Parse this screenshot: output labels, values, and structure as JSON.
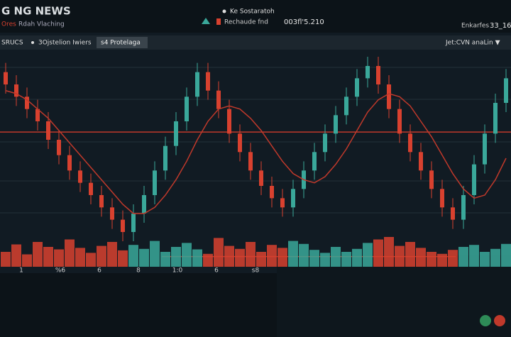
{
  "header": {
    "title": "G NG NEWS",
    "menu": [
      "Ores",
      "Rdah",
      "Vlaching"
    ],
    "status": "Ke Sostaratoh",
    "indicator": "Rechaude fnd",
    "price": "003fl'5.210",
    "right_label": "Enkarfes",
    "right_value": "33_16"
  },
  "toolbar": {
    "items": [
      "SRUCS",
      "3Ojstelion Iwiers",
      "s4 Protelaga"
    ],
    "selector": "Jet:CVN anaLin ▼"
  },
  "chart_data": {
    "type": "candlestick",
    "open": [
      82,
      78,
      74,
      70,
      66,
      60,
      55,
      50,
      46,
      42,
      38,
      34,
      30,
      36,
      42,
      50,
      58,
      66,
      74,
      82,
      76,
      70,
      62,
      56,
      50,
      45,
      41,
      38,
      44,
      50,
      56,
      62,
      68,
      74,
      80,
      84,
      78,
      70,
      62,
      56,
      50,
      44,
      38,
      34,
      42,
      52,
      62,
      72
    ],
    "high": [
      85,
      81,
      77,
      73,
      69,
      63,
      58,
      53,
      49,
      45,
      41,
      37,
      39,
      45,
      53,
      61,
      69,
      77,
      85,
      85,
      79,
      73,
      65,
      59,
      53,
      48,
      44,
      47,
      53,
      59,
      65,
      71,
      77,
      83,
      87,
      87,
      81,
      73,
      65,
      59,
      53,
      47,
      41,
      45,
      55,
      65,
      75,
      83
    ],
    "low": [
      75,
      71,
      67,
      63,
      57,
      52,
      47,
      43,
      39,
      35,
      31,
      27,
      27,
      33,
      39,
      47,
      55,
      63,
      71,
      73,
      67,
      59,
      53,
      47,
      42,
      38,
      35,
      35,
      41,
      47,
      53,
      59,
      65,
      71,
      77,
      75,
      67,
      59,
      53,
      47,
      41,
      35,
      31,
      31,
      39,
      49,
      59,
      69
    ],
    "close": [
      78,
      74,
      70,
      66,
      60,
      55,
      50,
      46,
      42,
      38,
      34,
      30,
      36,
      42,
      50,
      58,
      66,
      74,
      82,
      76,
      70,
      62,
      56,
      50,
      45,
      41,
      38,
      44,
      50,
      56,
      62,
      68,
      74,
      80,
      84,
      78,
      70,
      62,
      56,
      50,
      44,
      38,
      34,
      42,
      52,
      62,
      72,
      80
    ],
    "ma": [
      76,
      75,
      73,
      70,
      67,
      63,
      59,
      55,
      51,
      47,
      43,
      39,
      36,
      36,
      38,
      42,
      47,
      53,
      60,
      66,
      70,
      71,
      70,
      67,
      63,
      58,
      53,
      49,
      47,
      46,
      48,
      52,
      57,
      63,
      69,
      73,
      75,
      74,
      71,
      66,
      61,
      55,
      49,
      44,
      41,
      42,
      47,
      54
    ],
    "volume": [
      30,
      45,
      25,
      50,
      40,
      35,
      55,
      38,
      28,
      42,
      50,
      33,
      44,
      36,
      52,
      30,
      40,
      48,
      35,
      26,
      58,
      42,
      36,
      50,
      30,
      44,
      38,
      52,
      46,
      34,
      28,
      40,
      30,
      36,
      48,
      55,
      60,
      42,
      50,
      38,
      30,
      26,
      34,
      40,
      44,
      30,
      36,
      46
    ],
    "levels": [
      62.5,
      22
    ],
    "up_color": "#3aa89a",
    "down_color": "#d8412f",
    "ma_color": "#c0392b",
    "x_labels": [
      "1",
      "%6",
      "6",
      "8",
      "1:0",
      "6",
      "s8"
    ]
  }
}
